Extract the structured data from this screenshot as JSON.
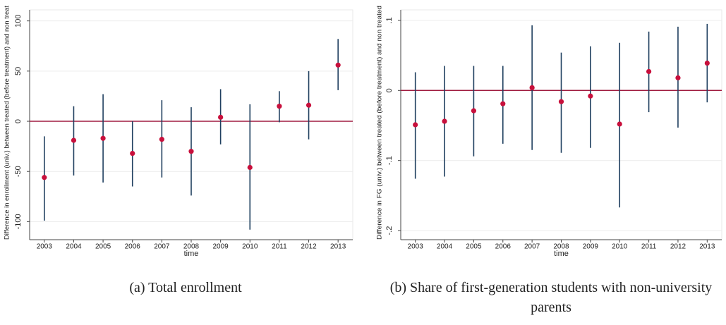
{
  "chart_data": [
    {
      "type": "errorbar",
      "x_label": "time",
      "y_label": "Difference in enrollment (univ.) between treated (before treatment)  and non treat",
      "caption": "(a) Total enrollment",
      "x": [
        2003,
        2004,
        2005,
        2006,
        2007,
        2008,
        2009,
        2010,
        2011,
        2012,
        2013
      ],
      "values": [
        -56,
        -19,
        -17,
        -32,
        -18,
        -30,
        4,
        -46,
        15,
        16,
        56
      ],
      "lower": [
        -99,
        -54,
        -61,
        -65,
        -56,
        -74,
        -23,
        -108,
        -1,
        -18,
        31
      ],
      "upper": [
        -15,
        15,
        27,
        0,
        21,
        14,
        32,
        17,
        30,
        50,
        82
      ],
      "xlim": [
        2002.5,
        2013.5
      ],
      "ylim": [
        -118,
        111
      ],
      "xticks": [
        2003,
        2004,
        2005,
        2006,
        2007,
        2008,
        2009,
        2010,
        2011,
        2012,
        2013
      ],
      "yticks": [
        -100,
        -50,
        0,
        50,
        100
      ],
      "reference_line": 0,
      "grid": true,
      "point_color": "#c8103c",
      "bar_color": "#1f3f5f",
      "reference_color": "#a01c40"
    },
    {
      "type": "errorbar",
      "x_label": "time",
      "y_label": "Difference in FG (univ.) between treated (before treatment) and non treated",
      "caption": "(b) Share of first-generation students with non-university parents",
      "x": [
        2003,
        2004,
        2005,
        2006,
        2007,
        2008,
        2009,
        2010,
        2011,
        2012,
        2013
      ],
      "values": [
        -0.049,
        -0.044,
        -0.029,
        -0.019,
        0.004,
        -0.016,
        -0.008,
        -0.048,
        0.027,
        0.018,
        0.039
      ],
      "lower": [
        -0.126,
        -0.123,
        -0.094,
        -0.076,
        -0.085,
        -0.089,
        -0.082,
        -0.167,
        -0.031,
        -0.053,
        -0.017
      ],
      "upper": [
        0.026,
        0.035,
        0.035,
        0.035,
        0.093,
        0.054,
        0.063,
        0.068,
        0.084,
        0.091,
        0.095
      ],
      "xlim": [
        2002.5,
        2013.5
      ],
      "ylim": [
        -0.213,
        0.115
      ],
      "xticks": [
        2003,
        2004,
        2005,
        2006,
        2007,
        2008,
        2009,
        2010,
        2011,
        2012,
        2013
      ],
      "yticks": [
        {
          "value": -0.2,
          "label": "-.2"
        },
        {
          "value": -0.1,
          "label": "-.1"
        },
        0,
        {
          "value": 0.1,
          "label": ".1"
        }
      ],
      "reference_line": 0,
      "grid": true,
      "point_color": "#c8103c",
      "bar_color": "#1f3f5f",
      "reference_color": "#a01c40"
    }
  ]
}
